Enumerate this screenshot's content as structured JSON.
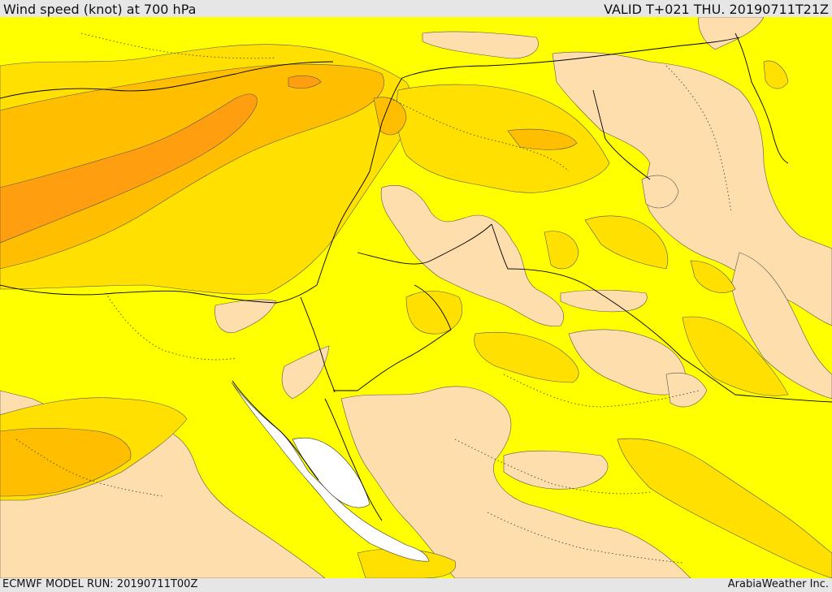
{
  "header": {
    "title": "Wind speed (knot) at 700 hPa",
    "valid": "VALID T+021 THU. 20190711T21Z"
  },
  "footer": {
    "model_run": "ECMWF MODEL RUN: 20190711T00Z",
    "credit": "ArabiaWeather Inc."
  },
  "colors": {
    "calm": "#ffdead",
    "low": "#ffff00",
    "moderate": "#ffe000",
    "fresh": "#ffbf00",
    "strong": "#ff9f10",
    "sea_gap": "#ffffff",
    "boundary": "#000000"
  }
}
